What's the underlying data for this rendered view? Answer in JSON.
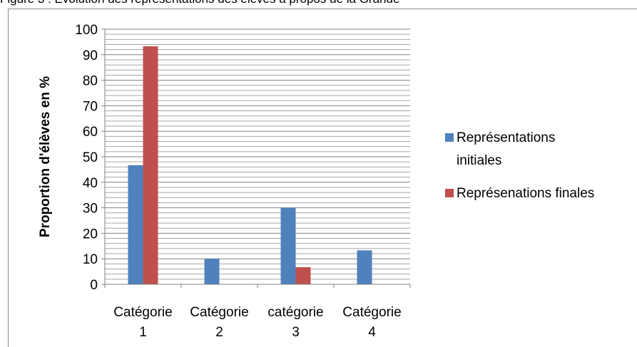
{
  "caption": "Figure 3 : Evolution des représentations des élèves à propos de la Grande",
  "chart_data": {
    "type": "bar",
    "categories": [
      [
        "Catégorie",
        "1"
      ],
      [
        "Catégorie",
        "2"
      ],
      [
        "catégorie",
        "3"
      ],
      [
        "Catégorie",
        "4"
      ]
    ],
    "series": [
      {
        "name": [
          "Représentations",
          "initiales"
        ],
        "values": [
          46.7,
          10,
          30,
          13.3
        ],
        "color": "#4f81bd"
      },
      {
        "name": [
          "Représenations finales"
        ],
        "values": [
          93.3,
          0,
          6.7,
          0
        ],
        "color": "#c0504d"
      }
    ],
    "ylabel": "Proportion d'élèves en %",
    "ylim": [
      0,
      100
    ],
    "ytick_step": 10,
    "grid": true,
    "legend": "right"
  }
}
